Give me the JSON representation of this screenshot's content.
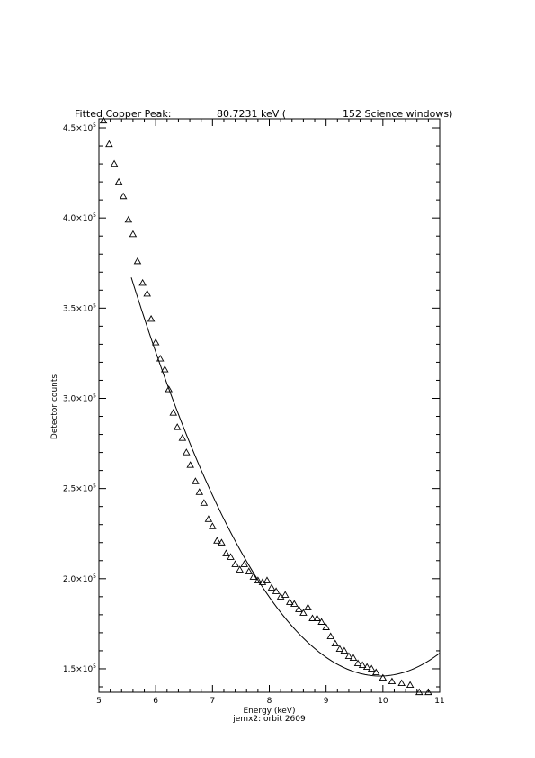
{
  "chart_data": {
    "type": "scatter",
    "title": {
      "label": "Fitted Copper Peak:",
      "value": "80.7231 keV (",
      "count": "152 Science windows)"
    },
    "xlabel": "Energy (keV)",
    "sublabel": "jemx2: orbit 2609",
    "ylabel": "Detector counts",
    "xlim": [
      5,
      11
    ],
    "ylim": [
      137000,
      455000
    ],
    "x_ticks": [
      5,
      6,
      7,
      8,
      9,
      10,
      11
    ],
    "x_tick_labels": [
      "5",
      "6",
      "7",
      "8",
      "9",
      "10",
      "11"
    ],
    "y_ticks": [
      150000,
      200000,
      250000,
      300000,
      350000,
      400000,
      450000
    ],
    "y_tick_labels": [
      {
        "mant": "1.5×10",
        "exp": "5"
      },
      {
        "mant": "2.0×10",
        "exp": "5"
      },
      {
        "mant": "2.5×10",
        "exp": "5"
      },
      {
        "mant": "3.0×10",
        "exp": "5"
      },
      {
        "mant": "3.5×10",
        "exp": "5"
      },
      {
        "mant": "4.0×10",
        "exp": "5"
      },
      {
        "mant": "4.5×10",
        "exp": "5"
      }
    ],
    "series": [
      {
        "marker": "triangle",
        "x": [
          5.08,
          5.18,
          5.27,
          5.35,
          5.43,
          5.52,
          5.6,
          5.68,
          5.77,
          5.85,
          5.92,
          6.0,
          6.08,
          6.16,
          6.23,
          6.31,
          6.38,
          6.47,
          6.54,
          6.61,
          6.7,
          6.77,
          6.85,
          6.93,
          7.0,
          7.08,
          7.16,
          7.24,
          7.32,
          7.4,
          7.48,
          7.56,
          7.64,
          7.72,
          7.8,
          7.88,
          7.96,
          8.04,
          8.12,
          8.2,
          8.28,
          8.36,
          8.44,
          8.52,
          8.6,
          8.68,
          8.76,
          8.84,
          8.92,
          9.0,
          9.08,
          9.16,
          9.24,
          9.32,
          9.4,
          9.48,
          9.56,
          9.64,
          9.72,
          9.8,
          9.88,
          10.0,
          10.16,
          10.33,
          10.48,
          10.64,
          10.8
        ],
        "y": [
          454000,
          441000,
          430000,
          420000,
          412000,
          399000,
          391000,
          376000,
          364000,
          358000,
          344000,
          331000,
          322000,
          316000,
          305000,
          292000,
          284000,
          278000,
          270000,
          263000,
          254000,
          248000,
          242000,
          233000,
          229000,
          221000,
          220000,
          214000,
          212000,
          208000,
          205000,
          208000,
          204000,
          201000,
          199000,
          198000,
          199000,
          195000,
          193000,
          190000,
          191000,
          187000,
          186000,
          183000,
          181000,
          184000,
          178000,
          178000,
          176000,
          173000,
          168000,
          164000,
          161000,
          160000,
          157000,
          156000,
          153000,
          152000,
          151000,
          150000,
          148000,
          145000,
          143000,
          142000,
          141000,
          137000,
          137000
        ]
      }
    ],
    "fit": {
      "x_range": [
        5.57,
        11.0
      ],
      "vertex_x": 9.95,
      "vertex_y": 146000,
      "curvature": 11520
    }
  }
}
